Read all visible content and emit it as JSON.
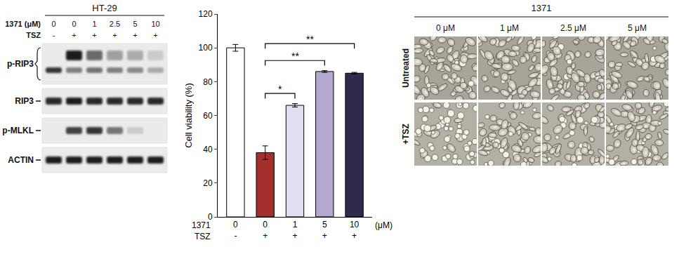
{
  "blot": {
    "title": "HT-29",
    "treatment_rows": [
      {
        "label": "1371 (μM)",
        "values": [
          "0",
          "0",
          "1",
          "2.5",
          "5",
          "10"
        ]
      },
      {
        "label": "TSZ",
        "values": [
          "-",
          "+",
          "+",
          "+",
          "+",
          "+"
        ]
      }
    ],
    "rows": [
      {
        "label": "p-RIP3",
        "bands": [
          [
            0,
            0.95,
            0.6,
            0.35,
            0.3,
            0.15
          ],
          [
            0.85,
            0.5,
            0.55,
            0.5,
            0.45,
            0.3
          ]
        ]
      },
      {
        "label": "RIP3",
        "bands": [
          [
            0.9,
            0.95,
            0.9,
            0.9,
            0.9,
            0.9
          ]
        ]
      },
      {
        "label": "p-MLKL",
        "bands": [
          [
            0,
            0.8,
            0.85,
            0.55,
            0.15,
            0
          ]
        ]
      },
      {
        "label": "ACTIN",
        "bands": [
          [
            0.95,
            0.95,
            0.95,
            0.95,
            0.95,
            0.95
          ]
        ]
      }
    ]
  },
  "chart_data": {
    "type": "bar",
    "categories": [
      "0",
      "0",
      "1",
      "5",
      "10"
    ],
    "category_label": "1371",
    "category_unit": "(μM)",
    "tsz_label": "TSZ",
    "tsz": [
      "-",
      "+",
      "+",
      "+",
      "+"
    ],
    "values": [
      100,
      38,
      66,
      86,
      85
    ],
    "error": [
      2,
      4,
      1,
      0.5,
      0.5
    ],
    "colors": [
      "#ffffff",
      "#a3302c",
      "#e2ddf0",
      "#b5a8cf",
      "#2f2b4c"
    ],
    "y_label": "Cell viability (%)",
    "ylim": [
      0,
      120
    ],
    "yticks": [
      0,
      20,
      40,
      60,
      80,
      100,
      120
    ],
    "grid": false,
    "significance": [
      {
        "from": 1,
        "to": 2,
        "label": "*"
      },
      {
        "from": 1,
        "to": 3,
        "label": "**"
      },
      {
        "from": 1,
        "to": 4,
        "label": "**"
      }
    ]
  },
  "micrographs": {
    "title": "1371",
    "columns": [
      "0 μM",
      "1 μM",
      "2.5 μM",
      "5 μM"
    ],
    "rows": [
      "Untreated",
      "+TSZ"
    ]
  }
}
